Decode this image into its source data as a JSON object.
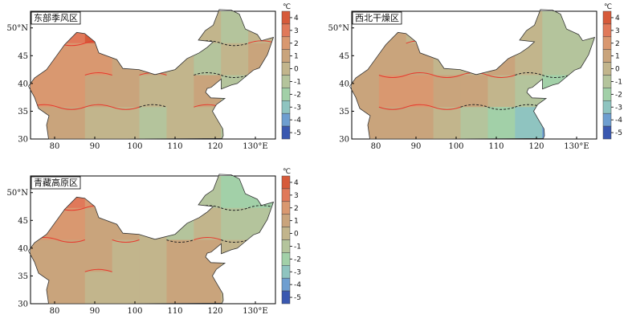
{
  "chart_data": [
    {
      "type": "heatmap",
      "title": "东部季风区",
      "x_ticks": [
        "80",
        "90",
        "100",
        "110",
        "120",
        "130°E"
      ],
      "y_ticks": [
        "30",
        "35",
        "40",
        "45",
        "50°N"
      ],
      "xlim": [
        74,
        135
      ],
      "ylim": [
        30,
        53
      ],
      "colorbar": {
        "unit": "℃",
        "ticks": [
          "4",
          "3",
          "2",
          "1",
          "0",
          "-1",
          "-2",
          "-3",
          "-4",
          "-5"
        ]
      },
      "values": [
        [
          2,
          3,
          4,
          3,
          1,
          0,
          0,
          -1,
          0
        ],
        [
          2,
          2,
          2,
          1,
          1,
          0,
          -1,
          0,
          1
        ],
        [
          2,
          2,
          1,
          1,
          0,
          0,
          1,
          -1,
          0
        ],
        [
          1,
          1,
          0,
          0,
          -1,
          0,
          0,
          -1,
          0
        ]
      ]
    },
    {
      "type": "heatmap",
      "title": "西北干燥区",
      "x_ticks": [
        "80",
        "90",
        "100",
        "110",
        "120",
        "130°E"
      ],
      "y_ticks": [
        "30",
        "35",
        "40",
        "45",
        "50°N"
      ],
      "xlim": [
        74,
        135
      ],
      "ylim": [
        30,
        53
      ],
      "colorbar": {
        "unit": "℃",
        "ticks": [
          "4",
          "3",
          "2",
          "1",
          "0",
          "-1",
          "-2",
          "-3",
          "-4",
          "-5"
        ]
      },
      "values": [
        [
          1,
          1,
          0,
          0,
          -1,
          0,
          0,
          -1,
          -1
        ],
        [
          1,
          1,
          1,
          0,
          0,
          1,
          0,
          -1,
          -1
        ],
        [
          1,
          2,
          2,
          1,
          1,
          0,
          -1,
          -2,
          -1
        ],
        [
          1,
          1,
          1,
          0,
          -1,
          -2,
          -3,
          -4,
          -2
        ]
      ]
    },
    {
      "type": "heatmap",
      "title": "青藏高原区",
      "x_ticks": [
        "80",
        "90",
        "100",
        "110",
        "120",
        "130°E"
      ],
      "y_ticks": [
        "30",
        "35",
        "40",
        "45",
        "50°N"
      ],
      "xlim": [
        74,
        135
      ],
      "ylim": [
        30,
        53
      ],
      "colorbar": {
        "unit": "℃",
        "ticks": [
          "4",
          "3",
          "2",
          "1",
          "0",
          "-1",
          "-2",
          "-3",
          "-4",
          "-5"
        ]
      },
      "values": [
        [
          2,
          3,
          2,
          1,
          0,
          -1,
          -1,
          -2,
          -2
        ],
        [
          2,
          2,
          1,
          1,
          0,
          -1,
          0,
          -1,
          -1
        ],
        [
          1,
          1,
          1,
          0,
          0,
          1,
          1,
          0,
          -1
        ],
        [
          1,
          1,
          0,
          0,
          0,
          1,
          1,
          0,
          0
        ]
      ]
    }
  ],
  "colors": {
    "4": "#d65a3a",
    "3": "#e0795a",
    "2": "#d99870",
    "1": "#c9a47c",
    "0": "#c2b58c",
    "-1": "#b4c49c",
    "-2": "#a2d0a8",
    "-3": "#8fc4c0",
    "-4": "#6e9ed0",
    "-5": "#3a58b0",
    "contour_positive": "#e8382c",
    "contour_negative": "#222222"
  }
}
